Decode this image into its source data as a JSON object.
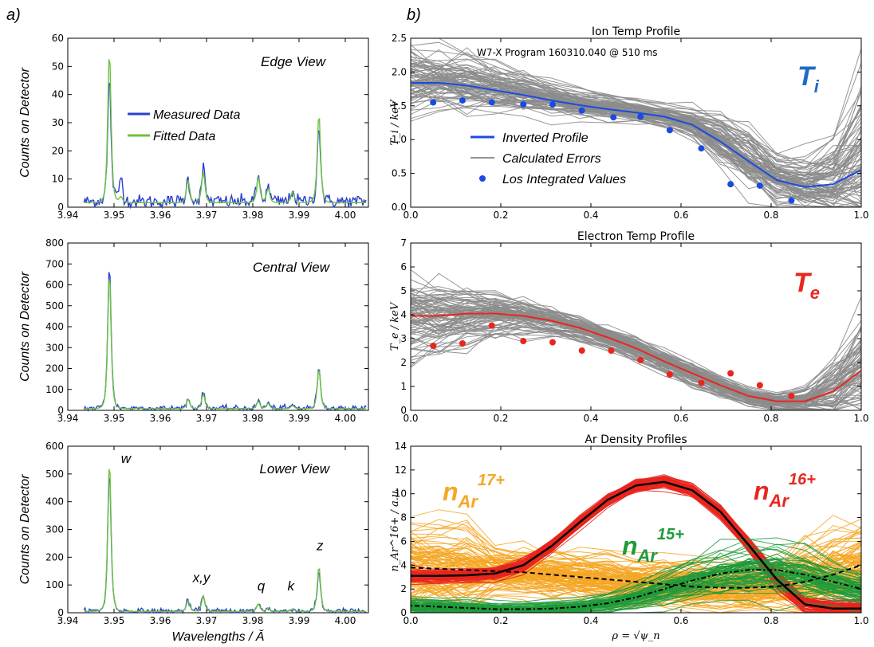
{
  "panel_labels": {
    "a": "a)",
    "b": "b)"
  },
  "colors": {
    "measured": "#2b3fd1",
    "fitted": "#6cc33e",
    "gray": "#8c8c8c",
    "ti_blue": "#1a4be0",
    "ti_label": "#1f6bc4",
    "te_red": "#e8261e",
    "orange": "#f5a623",
    "green": "#1f9a3a",
    "black": "#000000"
  },
  "chart_data": [
    {
      "type": "line",
      "id": "edge",
      "annotation": "Edge View",
      "ylabel": "Counts on Detector",
      "xlabel": "",
      "xlim": [
        3.94,
        4.005
      ],
      "ylim": [
        0,
        60
      ],
      "xticks": [
        "3.94",
        "3.95",
        "3.96",
        "3.97",
        "3.98",
        "3.99",
        "4.00"
      ],
      "yticks": [
        "0",
        "10",
        "20",
        "30",
        "40",
        "50",
        "60"
      ],
      "legend": {
        "placement": "upper-center",
        "entries": [
          "Measured Data",
          "Fitted Data"
        ]
      },
      "peaks": [
        [
          3.949,
          45.5,
          55.5
        ],
        [
          3.9515,
          11,
          4
        ],
        [
          3.966,
          10,
          10
        ],
        [
          3.9693,
          14,
          13
        ],
        [
          3.9812,
          11,
          11
        ],
        [
          3.9833,
          7,
          7
        ],
        [
          3.9886,
          6,
          6
        ],
        [
          3.9943,
          29.5,
          33.5
        ]
      ],
      "baseline": 2.0,
      "series": [
        {
          "name": "Measured Data"
        },
        {
          "name": "Fitted Data"
        }
      ]
    },
    {
      "type": "line",
      "id": "central",
      "annotation": "Central View",
      "ylabel": "Counts on Detector",
      "xlabel": "",
      "xlim": [
        3.94,
        4.005
      ],
      "ylim": [
        0,
        800
      ],
      "xticks": [
        "3.94",
        "3.95",
        "3.96",
        "3.97",
        "3.98",
        "3.99",
        "4.00"
      ],
      "yticks": [
        "0",
        "100",
        "200",
        "300",
        "400",
        "500",
        "600",
        "700",
        "800"
      ],
      "peaks": [
        [
          3.949,
          700,
          660
        ],
        [
          3.9553,
          15,
          15
        ],
        [
          3.966,
          55,
          55
        ],
        [
          3.9693,
          85,
          80
        ],
        [
          3.9812,
          45,
          45
        ],
        [
          3.9833,
          35,
          35
        ],
        [
          3.9886,
          25,
          25
        ],
        [
          3.9943,
          210,
          200
        ]
      ],
      "baseline": 10,
      "series": [
        {
          "name": "Measured Data"
        },
        {
          "name": "Fitted Data"
        }
      ]
    },
    {
      "type": "line",
      "id": "lower",
      "annotation": "Lower View",
      "ylabel": "Counts on Detector",
      "xlabel": "Wavelengths / Ă",
      "xlim": [
        3.94,
        4.005
      ],
      "ylim": [
        0,
        600
      ],
      "xticks": [
        "3.94",
        "3.95",
        "3.96",
        "3.97",
        "3.98",
        "3.99",
        "4.00"
      ],
      "yticks": [
        "0",
        "100",
        "200",
        "300",
        "400",
        "500",
        "600"
      ],
      "line_labels": [
        {
          "text": "w",
          "x": 3.9515,
          "y": 540
        },
        {
          "text": "x,y",
          "x": 3.967,
          "y": 110
        },
        {
          "text": "q",
          "x": 3.981,
          "y": 80
        },
        {
          "text": "k",
          "x": 3.9875,
          "y": 80
        },
        {
          "text": "z",
          "x": 3.9938,
          "y": 225
        }
      ],
      "peaks": [
        [
          3.949,
          510,
          545
        ],
        [
          3.966,
          45,
          45
        ],
        [
          3.9693,
          65,
          62
        ],
        [
          3.9812,
          33,
          33
        ],
        [
          3.9833,
          18,
          18
        ],
        [
          3.9886,
          15,
          15
        ],
        [
          3.9943,
          150,
          168
        ]
      ],
      "baseline": 6,
      "series": [
        {
          "name": "Measured Data"
        },
        {
          "name": "Fitted Data"
        }
      ]
    },
    {
      "type": "line",
      "id": "ti",
      "title": "Ion Temp Profile",
      "annotation": "W7-X Program 160310.040 @ 510 ms",
      "big_label": "T",
      "big_label_sub": "i",
      "ylabel": "T_i / keV",
      "xlim": [
        0.0,
        1.0
      ],
      "ylim": [
        0.0,
        2.5
      ],
      "xticks": [
        "0.0",
        "0.2",
        "0.4",
        "0.6",
        "0.8",
        "1.0"
      ],
      "yticks": [
        "0.0",
        "0.5",
        "1.0",
        "1.5",
        "2.0",
        "2.5"
      ],
      "legend": {
        "placement": "middle-left",
        "entries": [
          "Inverted Profile",
          "Calculated Errors",
          "Los Integrated Values"
        ]
      },
      "x": [
        0.0,
        0.0625,
        0.125,
        0.1875,
        0.25,
        0.3125,
        0.375,
        0.4375,
        0.5,
        0.5625,
        0.625,
        0.6875,
        0.75,
        0.8125,
        0.875,
        0.9375,
        1.0
      ],
      "inverted": [
        1.84,
        1.84,
        1.8,
        1.73,
        1.66,
        1.58,
        1.51,
        1.45,
        1.4,
        1.34,
        1.22,
        0.97,
        0.68,
        0.4,
        0.3,
        0.34,
        0.55
      ],
      "error_spread": [
        0.45,
        0.4,
        0.36,
        0.3,
        0.25,
        0.2,
        0.17,
        0.15,
        0.14,
        0.15,
        0.2,
        0.3,
        0.4,
        0.35,
        0.35,
        0.55,
        1.1
      ],
      "points_x": [
        0.05,
        0.115,
        0.18,
        0.25,
        0.315,
        0.38,
        0.45,
        0.51,
        0.575,
        0.645,
        0.71,
        0.775,
        0.845
      ],
      "points_y": [
        1.55,
        1.58,
        1.55,
        1.52,
        1.52,
        1.43,
        1.33,
        1.34,
        1.14,
        0.87,
        0.34,
        0.32,
        0.1
      ]
    },
    {
      "type": "line",
      "id": "te",
      "title": "Electron Temp Profile",
      "big_label": "T",
      "big_label_sub": "e",
      "ylabel": "T_e / keV",
      "xlim": [
        0.0,
        1.0
      ],
      "ylim": [
        0,
        7
      ],
      "xticks": [
        "0.0",
        "0.2",
        "0.4",
        "0.6",
        "0.8",
        "1.0"
      ],
      "yticks": [
        "0",
        "1",
        "2",
        "3",
        "4",
        "5",
        "6",
        "7"
      ],
      "x": [
        0.0,
        0.0625,
        0.125,
        0.1875,
        0.25,
        0.3125,
        0.375,
        0.4375,
        0.5,
        0.5625,
        0.625,
        0.6875,
        0.75,
        0.8125,
        0.875,
        0.9375,
        1.0
      ],
      "inverted": [
        3.95,
        3.95,
        4.05,
        4.05,
        3.95,
        3.75,
        3.45,
        3.05,
        2.6,
        2.05,
        1.55,
        1.05,
        0.6,
        0.38,
        0.38,
        0.8,
        1.65
      ],
      "error_spread": [
        1.4,
        1.2,
        1.0,
        0.8,
        0.6,
        0.5,
        0.45,
        0.4,
        0.4,
        0.4,
        0.4,
        0.35,
        0.3,
        0.3,
        0.5,
        1.2,
        2.0
      ],
      "points_x": [
        0.05,
        0.115,
        0.18,
        0.25,
        0.315,
        0.38,
        0.445,
        0.51,
        0.575,
        0.645,
        0.71,
        0.775,
        0.845
      ],
      "points_y": [
        2.7,
        2.8,
        3.55,
        2.9,
        2.85,
        2.5,
        2.5,
        2.1,
        1.5,
        1.15,
        1.55,
        1.05,
        0.6
      ]
    },
    {
      "type": "line",
      "id": "ar",
      "title": "Ar Density Profiles",
      "ylabel": "n_Ar^16+ / a.u.",
      "xlabel": "ρ = √ψ_n",
      "xlim": [
        0.0,
        1.0
      ],
      "ylim": [
        0,
        14
      ],
      "xticks": [
        "0.0",
        "0.2",
        "0.4",
        "0.6",
        "0.8",
        "1.0"
      ],
      "yticks": [
        "0",
        "2",
        "4",
        "6",
        "8",
        "10",
        "12",
        "14"
      ],
      "labels": [
        {
          "base": "n",
          "sub": "Ar",
          "sup": "17+",
          "color": "#f5a623"
        },
        {
          "base": "n",
          "sub": "Ar",
          "sup": "16+",
          "color": "#e8261e"
        },
        {
          "base": "n",
          "sub": "Ar",
          "sup": "15+",
          "color": "#1f9a3a"
        }
      ],
      "x": [
        0.0,
        0.0625,
        0.125,
        0.1875,
        0.25,
        0.3125,
        0.375,
        0.4375,
        0.5,
        0.5625,
        0.625,
        0.6875,
        0.75,
        0.8125,
        0.875,
        0.9375,
        1.0
      ],
      "ar16": [
        3.1,
        3.1,
        3.15,
        3.3,
        4.0,
        5.6,
        7.6,
        9.5,
        10.7,
        11.0,
        10.3,
        8.5,
        5.7,
        2.8,
        0.7,
        0.35,
        0.35
      ],
      "ar17": [
        3.8,
        3.7,
        3.6,
        3.5,
        3.4,
        3.2,
        3.0,
        2.8,
        2.6,
        2.4,
        2.2,
        2.1,
        2.1,
        2.2,
        2.6,
        3.2,
        4.0
      ],
      "ar15": [
        0.6,
        0.5,
        0.4,
        0.3,
        0.3,
        0.35,
        0.5,
        0.8,
        1.3,
        2.0,
        2.7,
        3.3,
        3.6,
        3.6,
        3.2,
        2.6,
        2.0
      ]
    }
  ]
}
